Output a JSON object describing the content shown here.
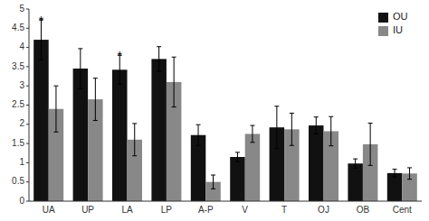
{
  "chart_data": {
    "type": "bar",
    "categories": [
      "UA",
      "UP",
      "LA",
      "LP",
      "A-P",
      "V",
      "T",
      "OJ",
      "OB",
      "Cent"
    ],
    "series": [
      {
        "name": "OU",
        "color": "#111111",
        "values": [
          4.2,
          3.45,
          3.42,
          3.7,
          1.72,
          1.15,
          1.92,
          1.97,
          0.98,
          0.73
        ],
        "errors": [
          0.52,
          0.52,
          0.38,
          0.32,
          0.27,
          0.12,
          0.55,
          0.22,
          0.12,
          0.1
        ]
      },
      {
        "name": "IU",
        "color": "#888888",
        "values": [
          2.4,
          2.65,
          1.6,
          3.1,
          0.5,
          1.75,
          1.87,
          1.82,
          1.48,
          0.72
        ],
        "errors": [
          0.6,
          0.55,
          0.42,
          0.65,
          0.18,
          0.22,
          0.42,
          0.38,
          0.55,
          0.15
        ]
      }
    ],
    "annotations": [
      {
        "text": "*",
        "category": "UA",
        "series": "OU"
      },
      {
        "text": "*",
        "category": "LA",
        "series": "OU"
      }
    ],
    "ylim": [
      0,
      5
    ],
    "yticks": [
      0,
      0.5,
      1,
      1.5,
      2,
      2.5,
      3,
      3.5,
      4,
      4.5,
      5
    ],
    "grid": false,
    "legend": "upper right"
  }
}
